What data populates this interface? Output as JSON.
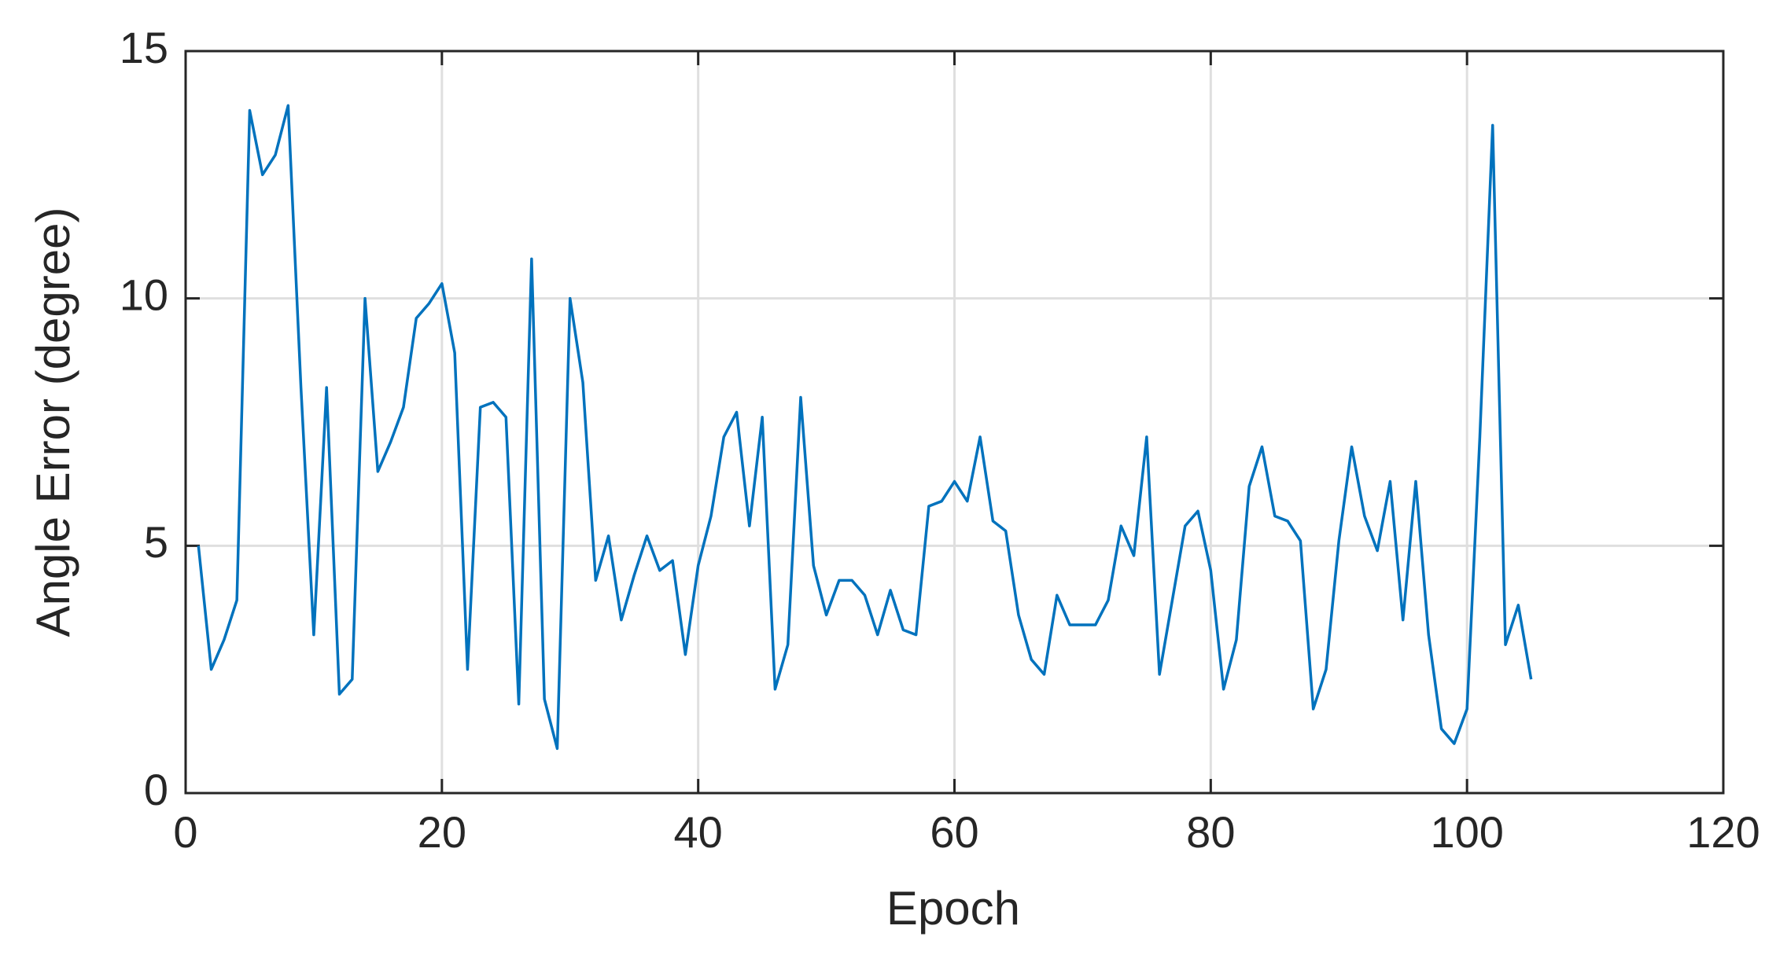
{
  "chart_data": {
    "type": "line",
    "xlabel": "Epoch",
    "ylabel": "Angle Error (degree)",
    "x": [
      1,
      2,
      3,
      4,
      5,
      6,
      7,
      8,
      9,
      10,
      11,
      12,
      13,
      14,
      15,
      16,
      17,
      18,
      19,
      20,
      21,
      22,
      23,
      24,
      25,
      26,
      27,
      28,
      29,
      30,
      31,
      32,
      33,
      34,
      35,
      36,
      37,
      38,
      39,
      40,
      41,
      42,
      43,
      44,
      45,
      46,
      47,
      48,
      49,
      50,
      51,
      52,
      53,
      54,
      55,
      56,
      57,
      58,
      59,
      60,
      61,
      62,
      63,
      64,
      65,
      66,
      67,
      68,
      69,
      70,
      71,
      72,
      73,
      74,
      75,
      76,
      77,
      78,
      79,
      80,
      81,
      82,
      83,
      84,
      85,
      86,
      87,
      88,
      89,
      90,
      91,
      92,
      93,
      94,
      95,
      96,
      97,
      98,
      99,
      100,
      101,
      102,
      103,
      104,
      105
    ],
    "series": [
      {
        "color": "#0072bd",
        "values": [
          5.0,
          2.5,
          3.1,
          3.9,
          13.8,
          12.5,
          12.9,
          13.9,
          8.2,
          3.2,
          8.2,
          2.0,
          2.3,
          10.0,
          6.5,
          7.1,
          7.8,
          9.6,
          9.9,
          10.3,
          8.9,
          2.5,
          7.8,
          7.9,
          7.6,
          1.8,
          10.8,
          1.9,
          0.9,
          10.0,
          8.3,
          4.3,
          5.2,
          3.5,
          4.4,
          5.2,
          4.5,
          4.7,
          2.8,
          4.6,
          5.6,
          7.2,
          7.7,
          5.4,
          7.6,
          2.1,
          3.0,
          8.0,
          4.6,
          3.6,
          4.3,
          4.3,
          4.0,
          3.2,
          4.1,
          3.3,
          3.2,
          5.8,
          5.9,
          6.3,
          5.9,
          7.2,
          5.5,
          5.3,
          3.6,
          2.7,
          2.4,
          4.0,
          3.4,
          3.4,
          3.4,
          3.9,
          5.4,
          4.8,
          7.2,
          2.4,
          3.9,
          5.4,
          5.7,
          4.5,
          2.1,
          3.1,
          6.2,
          7.0,
          5.6,
          5.5,
          5.1,
          1.7,
          2.5,
          5.1,
          7.0,
          5.6,
          4.9,
          6.3,
          3.5,
          6.3,
          3.2,
          1.3,
          1.0,
          1.7,
          7.2,
          13.5,
          3.0,
          3.8,
          2.3
        ]
      }
    ],
    "xlim": [
      0,
      120
    ],
    "xticks": [
      0,
      20,
      40,
      60,
      80,
      100,
      120
    ],
    "ylim": [
      0,
      15
    ],
    "yticks": [
      0,
      5,
      10,
      15
    ],
    "grid": true
  }
}
